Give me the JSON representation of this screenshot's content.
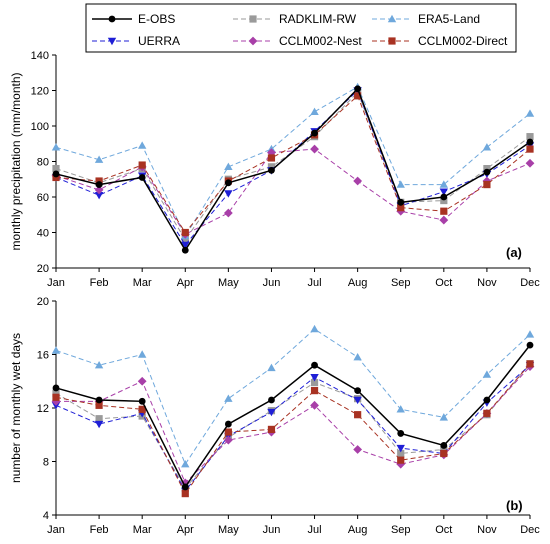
{
  "chart_data": [
    {
      "type": "line",
      "panel_label": "(a)",
      "ylabel": "monthly precipitation (mm/month)",
      "ylim": [
        20,
        140
      ],
      "yticks": [
        "20",
        "40",
        "60",
        "80",
        "100",
        "120",
        "140"
      ],
      "categories": [
        "Jan",
        "Feb",
        "Mar",
        "Apr",
        "May",
        "Jun",
        "Jul",
        "Aug",
        "Sep",
        "Oct",
        "Nov",
        "Dec"
      ],
      "series": [
        {
          "name": "E-OBS",
          "values": [
            73,
            67,
            71,
            30,
            68,
            75,
            96,
            121,
            57,
            60,
            74,
            91
          ]
        },
        {
          "name": "RADKLIM-RW",
          "values": [
            76,
            68,
            76,
            36,
            70,
            77,
            94,
            119,
            57,
            58,
            76,
            94
          ]
        },
        {
          "name": "ERA5-Land",
          "values": [
            88,
            81,
            89,
            38,
            77,
            87,
            108,
            122,
            67,
            67,
            88,
            107
          ]
        },
        {
          "name": "UERRA",
          "values": [
            71,
            61,
            72,
            33,
            62,
            75,
            97,
            120,
            55,
            63,
            73,
            89
          ]
        },
        {
          "name": "CCLM002-Nest",
          "values": [
            72,
            64,
            77,
            39,
            51,
            85,
            87,
            69,
            52,
            47,
            69,
            79
          ]
        },
        {
          "name": "CCLM002-Direct",
          "values": [
            71,
            69,
            78,
            40,
            69,
            82,
            95,
            117,
            54,
            52,
            67,
            87
          ]
        }
      ]
    },
    {
      "type": "line",
      "panel_label": "(b)",
      "ylabel": "number of monthly wet days",
      "ylim": [
        4,
        20
      ],
      "yticks": [
        "4",
        "8",
        "12",
        "16",
        "20"
      ],
      "categories": [
        "Jan",
        "Feb",
        "Mar",
        "Apr",
        "May",
        "Jun",
        "Jul",
        "Aug",
        "Sep",
        "Oct",
        "Nov",
        "Dec"
      ],
      "series": [
        {
          "name": "E-OBS",
          "values": [
            13.5,
            12.6,
            12.5,
            6.1,
            10.8,
            12.6,
            15.2,
            13.3,
            10.1,
            9.2,
            12.6,
            16.7
          ]
        },
        {
          "name": "RADKLIM-RW",
          "values": [
            13.1,
            11.2,
            11.4,
            6.0,
            9.8,
            11.8,
            13.9,
            12.7,
            8.6,
            8.9,
            11.5,
            15.3
          ]
        },
        {
          "name": "ERA5-Land",
          "values": [
            16.3,
            15.2,
            16.0,
            7.8,
            12.7,
            15.0,
            17.9,
            15.8,
            11.9,
            11.3,
            14.5,
            17.5
          ]
        },
        {
          "name": "UERRA",
          "values": [
            12.2,
            10.8,
            11.6,
            5.8,
            9.9,
            11.7,
            14.3,
            12.6,
            9.0,
            8.6,
            12.4,
            15.2
          ]
        },
        {
          "name": "CCLM002-Nest",
          "values": [
            12.5,
            12.5,
            14.0,
            6.4,
            9.6,
            10.2,
            12.2,
            8.9,
            7.8,
            8.5,
            11.6,
            15.1
          ]
        },
        {
          "name": "CCLM002-Direct",
          "values": [
            12.8,
            12.2,
            11.9,
            5.6,
            10.2,
            10.4,
            13.3,
            11.5,
            8.1,
            8.6,
            11.6,
            15.3
          ]
        }
      ]
    }
  ],
  "series_style": {
    "E-OBS": {
      "color": "#000000",
      "marker": "circle",
      "dash": "solid"
    },
    "RADKLIM-RW": {
      "color": "#9a9a9a",
      "marker": "square",
      "dash": "dashed"
    },
    "ERA5-Land": {
      "color": "#6fa8dc",
      "marker": "triangle-up",
      "dash": "dashed"
    },
    "UERRA": {
      "color": "#1f1fd6",
      "marker": "triangle-down",
      "dash": "dashed"
    },
    "CCLM002-Nest": {
      "color": "#a83fa8",
      "marker": "diamond",
      "dash": "dashed"
    },
    "CCLM002-Direct": {
      "color": "#a83222",
      "marker": "square",
      "dash": "dashed"
    }
  },
  "legend": {
    "placement": "top",
    "entries": [
      "E-OBS",
      "RADKLIM-RW",
      "ERA5-Land",
      "UERRA",
      "CCLM002-Nest",
      "CCLM002-Direct"
    ]
  }
}
